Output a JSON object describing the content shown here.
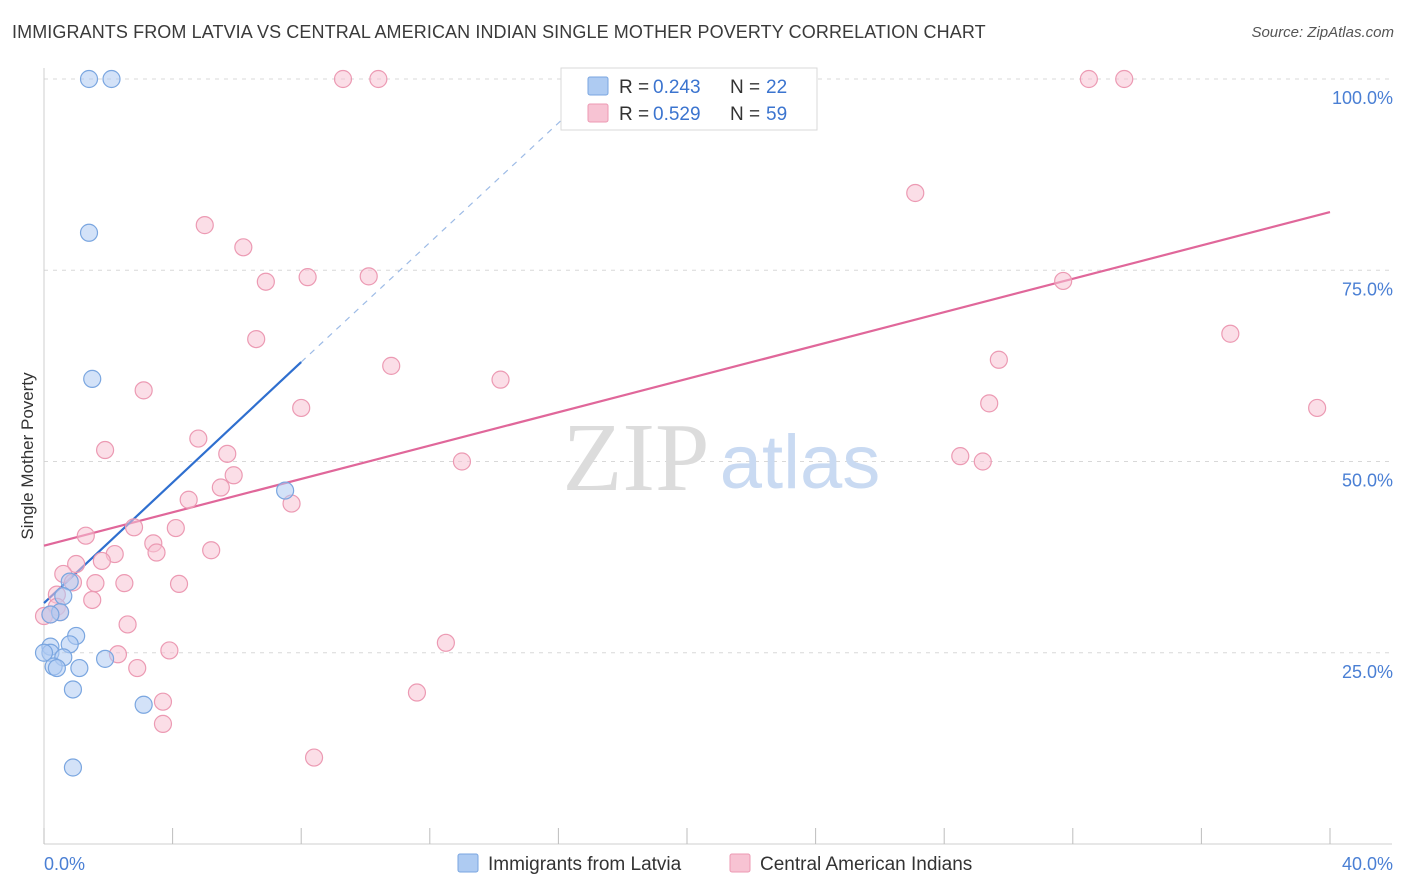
{
  "title": "IMMIGRANTS FROM LATVIA VS CENTRAL AMERICAN INDIAN SINGLE MOTHER POVERTY CORRELATION CHART",
  "source": "Source: ZipAtlas.com",
  "watermark": {
    "zip": "ZIP",
    "atlas": "atlas"
  },
  "colors": {
    "blue_fill": "#aecbf2",
    "blue_stroke": "#7aa6e0",
    "blue_line": "#2f6fcf",
    "pink_fill": "#f7c3d3",
    "pink_stroke": "#ec9ab3",
    "pink_line": "#e0679a",
    "axis_text": "#4a7fd4",
    "grid": "#d8d8d8"
  },
  "legend": {
    "rows": [
      {
        "r_label": "R =",
        "r_value": "0.243",
        "n_label": "N =",
        "n_value": "22",
        "series": "blue"
      },
      {
        "r_label": "R =",
        "r_value": "0.529",
        "n_label": "N =",
        "n_value": "59",
        "series": "pink"
      }
    ]
  },
  "chart_data": {
    "type": "scatter",
    "title": "IMMIGRANTS FROM LATVIA VS CENTRAL AMERICAN INDIAN SINGLE MOTHER POVERTY CORRELATION CHART",
    "xlabel": "",
    "ylabel": "Single Mother Poverty",
    "xlim": [
      0,
      40
    ],
    "ylim": [
      0,
      102
    ],
    "x_tick_labels": [
      "0.0%",
      "40.0%"
    ],
    "y_ticks": [
      25,
      50,
      75,
      100
    ],
    "y_tick_labels": [
      "25.0%",
      "50.0%",
      "75.0%",
      "100.0%"
    ],
    "grid": true,
    "legend_placement": "top-center",
    "series": [
      {
        "name": "Immigrants from Latvia",
        "color": "blue",
        "r": 0.243,
        "n": 22,
        "trend": {
          "x": [
            0.0,
            8.0
          ],
          "y": [
            31.5,
            63.0
          ],
          "dashed_extension_to": [
            17.6,
            100.5
          ]
        },
        "points": [
          [
            1.4,
            100.0
          ],
          [
            2.1,
            100.0
          ],
          [
            1.4,
            79.9
          ],
          [
            1.5,
            60.8
          ],
          [
            7.5,
            46.2
          ],
          [
            0.8,
            34.3
          ],
          [
            0.6,
            32.4
          ],
          [
            0.5,
            30.3
          ],
          [
            0.2,
            30.0
          ],
          [
            1.0,
            27.2
          ],
          [
            0.8,
            26.1
          ],
          [
            0.2,
            25.8
          ],
          [
            0.2,
            25.0
          ],
          [
            0.6,
            24.4
          ],
          [
            0.3,
            23.2
          ],
          [
            0.4,
            23.0
          ],
          [
            1.1,
            23.0
          ],
          [
            1.9,
            24.2
          ],
          [
            0.9,
            20.2
          ],
          [
            3.1,
            18.2
          ],
          [
            0.9,
            10.0
          ],
          [
            0.0,
            25.0
          ]
        ]
      },
      {
        "name": "Central American Indians",
        "color": "pink",
        "r": 0.529,
        "n": 59,
        "trend": {
          "x": [
            0.0,
            40.0
          ],
          "y": [
            39.0,
            82.6
          ]
        },
        "points": [
          [
            9.3,
            100.0
          ],
          [
            10.4,
            100.0
          ],
          [
            32.5,
            100.0
          ],
          [
            33.6,
            100.0
          ],
          [
            27.1,
            85.1
          ],
          [
            5.0,
            80.9
          ],
          [
            6.2,
            78.0
          ],
          [
            6.9,
            73.5
          ],
          [
            8.2,
            74.1
          ],
          [
            10.1,
            74.2
          ],
          [
            31.7,
            73.6
          ],
          [
            6.6,
            66.0
          ],
          [
            36.9,
            66.7
          ],
          [
            29.7,
            63.3
          ],
          [
            10.8,
            62.5
          ],
          [
            14.2,
            60.7
          ],
          [
            3.1,
            59.3
          ],
          [
            8.0,
            57.0
          ],
          [
            29.4,
            57.6
          ],
          [
            39.6,
            57.0
          ],
          [
            4.8,
            53.0
          ],
          [
            1.9,
            51.5
          ],
          [
            5.7,
            51.0
          ],
          [
            28.5,
            50.7
          ],
          [
            13.0,
            50.0
          ],
          [
            29.2,
            50.0
          ],
          [
            5.9,
            48.2
          ],
          [
            5.5,
            46.6
          ],
          [
            4.5,
            45.0
          ],
          [
            7.7,
            44.5
          ],
          [
            4.1,
            41.3
          ],
          [
            2.8,
            41.4
          ],
          [
            1.3,
            40.3
          ],
          [
            3.4,
            39.3
          ],
          [
            3.5,
            38.1
          ],
          [
            5.2,
            38.4
          ],
          [
            2.2,
            37.9
          ],
          [
            1.8,
            37.0
          ],
          [
            1.0,
            36.6
          ],
          [
            0.6,
            35.3
          ],
          [
            0.9,
            34.2
          ],
          [
            1.6,
            34.1
          ],
          [
            2.5,
            34.1
          ],
          [
            4.2,
            34.0
          ],
          [
            0.4,
            32.6
          ],
          [
            1.5,
            31.9
          ],
          [
            0.4,
            31.0
          ],
          [
            0.5,
            30.3
          ],
          [
            0.0,
            29.8
          ],
          [
            2.6,
            28.7
          ],
          [
            12.5,
            26.3
          ],
          [
            3.9,
            25.3
          ],
          [
            2.3,
            24.8
          ],
          [
            2.9,
            23.0
          ],
          [
            11.6,
            19.8
          ],
          [
            3.7,
            18.6
          ],
          [
            3.7,
            15.7
          ],
          [
            8.4,
            11.3
          ],
          [
            0.2,
            30.0
          ]
        ]
      }
    ]
  }
}
